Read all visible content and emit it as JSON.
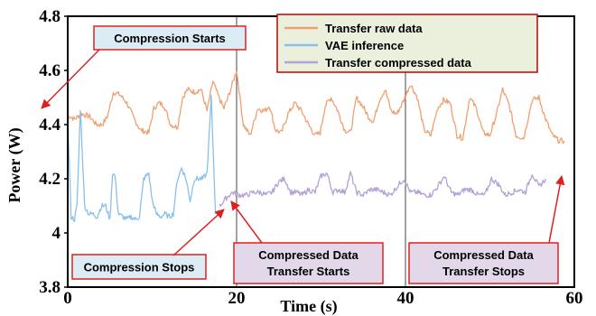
{
  "chart_data": {
    "type": "line",
    "xlabel": "Time (s)",
    "ylabel": "Power (W)",
    "xlim": [
      0,
      60
    ],
    "ylim": [
      3.8,
      4.8
    ],
    "x_ticks": [
      "0",
      "20",
      "40",
      "60"
    ],
    "y_ticks": [
      "3.8",
      "4",
      "4.2",
      "4.4",
      "4.6",
      "4.8"
    ],
    "grid": "vertical",
    "legend_position": "top-center",
    "series": [
      {
        "name": "Transfer raw data",
        "color": "#f0a070",
        "x": [
          0,
          0.3,
          0.8,
          1.6,
          2.6,
          3.4,
          4.1,
          4.7,
          5.4,
          6.2,
          7.0,
          7.9,
          8.6,
          9.6,
          10.2,
          10.8,
          11.4,
          12.2,
          13.0,
          13.6,
          14.2,
          15.0,
          15.8,
          16.5,
          17.2,
          17.9,
          18.5,
          19.2,
          20.0,
          20.8,
          21.6,
          22.5,
          23.3,
          23.9,
          24.6,
          25.3,
          26.1,
          26.9,
          27.7,
          28.5,
          29.3,
          29.9,
          30.5,
          31.2,
          32.0,
          32.8,
          33.5,
          34.2,
          34.9,
          35.6,
          36.2,
          36.9,
          37.6,
          38.3,
          39.0,
          39.8,
          40.6,
          41.4,
          42.2,
          43.0,
          43.8,
          44.5,
          45.3,
          46.1,
          46.8,
          47.6,
          48.4,
          49.2,
          50.0,
          50.8,
          51.5,
          52.3,
          53.1,
          54.0,
          55.0,
          55.8,
          56.6,
          57.4,
          58.2,
          58.8
        ],
        "y": [
          4.43,
          4.43,
          4.42,
          4.44,
          4.43,
          4.4,
          4.4,
          4.43,
          4.52,
          4.51,
          4.48,
          4.42,
          4.38,
          4.37,
          4.46,
          4.48,
          4.47,
          4.4,
          4.39,
          4.5,
          4.53,
          4.52,
          4.53,
          4.45,
          4.56,
          4.5,
          4.46,
          4.52,
          4.6,
          4.4,
          4.36,
          4.46,
          4.45,
          4.47,
          4.38,
          4.37,
          4.44,
          4.48,
          4.45,
          4.4,
          4.36,
          4.37,
          4.47,
          4.5,
          4.45,
          4.38,
          4.37,
          4.5,
          4.47,
          4.43,
          4.41,
          4.49,
          4.53,
          4.45,
          4.44,
          4.49,
          4.55,
          4.5,
          4.38,
          4.36,
          4.46,
          4.49,
          4.48,
          4.36,
          4.35,
          4.5,
          4.46,
          4.37,
          4.36,
          4.44,
          4.53,
          4.47,
          4.36,
          4.35,
          4.49,
          4.5,
          4.42,
          4.36,
          4.34,
          4.34
        ]
      },
      {
        "name": "VAE inference",
        "color": "#88c0ea",
        "x": [
          0,
          0.4,
          0.8,
          1.1,
          1.5,
          2.0,
          2.5,
          3.0,
          3.5,
          4.0,
          4.5,
          5.0,
          5.3,
          5.6,
          6.0,
          6.5,
          7.0,
          7.5,
          8.0,
          8.5,
          9.0,
          9.6,
          10.0,
          10.5,
          11.0,
          11.5,
          12.0,
          12.5,
          13.0,
          13.5,
          14.0,
          14.5,
          15.0,
          15.5,
          16.0,
          16.5,
          17.0,
          17.5
        ],
        "y": [
          4.43,
          4.06,
          4.05,
          4.1,
          4.46,
          4.1,
          4.07,
          4.07,
          4.06,
          4.1,
          4.1,
          4.05,
          4.22,
          4.21,
          4.07,
          4.06,
          4.05,
          4.06,
          4.05,
          4.06,
          4.2,
          4.22,
          4.12,
          4.07,
          4.06,
          4.07,
          4.06,
          4.07,
          4.2,
          4.24,
          4.2,
          4.12,
          4.2,
          4.2,
          4.2,
          4.22,
          4.5,
          4.07
        ]
      },
      {
        "name": "Transfer compressed data",
        "color": "#b3a2d6",
        "x": [
          18.0,
          18.8,
          19.5,
          20.3,
          21.2,
          22.0,
          22.8,
          23.5,
          24.2,
          25.0,
          25.7,
          26.4,
          27.1,
          27.8,
          28.5,
          29.3,
          30.0,
          30.7,
          31.4,
          32.1,
          32.8,
          33.5,
          34.2,
          35.0,
          35.8,
          36.6,
          37.4,
          38.2,
          39.0,
          39.8,
          40.6,
          41.4,
          42.2,
          43.0,
          43.8,
          44.6,
          45.4,
          46.2,
          47.0,
          47.8,
          48.6,
          49.4,
          50.2,
          51.0,
          51.8,
          52.6,
          53.4,
          54.2,
          55.0,
          55.8,
          56.6
        ],
        "y": [
          4.1,
          4.13,
          4.15,
          4.14,
          4.14,
          4.15,
          4.15,
          4.14,
          4.15,
          4.19,
          4.2,
          4.15,
          4.15,
          4.14,
          4.16,
          4.15,
          4.21,
          4.22,
          4.15,
          4.16,
          4.15,
          4.22,
          4.15,
          4.14,
          4.16,
          4.16,
          4.15,
          4.14,
          4.17,
          4.2,
          4.15,
          4.15,
          4.14,
          4.14,
          4.17,
          4.21,
          4.15,
          4.14,
          4.16,
          4.16,
          4.14,
          4.14,
          4.2,
          4.18,
          4.14,
          4.15,
          4.16,
          4.15,
          4.22,
          4.17,
          4.2
        ]
      }
    ],
    "annotations": [
      {
        "text": "Compression Starts",
        "fill": "#dcecf4"
      },
      {
        "text": "Compression Stops",
        "fill": "#dcecf4"
      },
      {
        "text": "Compressed Data",
        "text2": "Transfer Starts",
        "fill": "#e2d8ea"
      },
      {
        "text": "Compressed Data",
        "text2": "Transfer Stops",
        "fill": "#e2d8ea"
      }
    ],
    "legend_fill": "#eaf0dc"
  }
}
